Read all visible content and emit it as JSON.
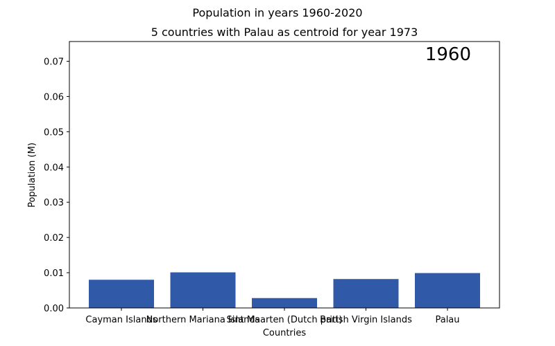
{
  "chart_data": {
    "type": "bar",
    "title": "Population in years 1960-2020",
    "subtitle": "5 countries with Palau as centroid for year 1973",
    "xlabel": "Countries",
    "ylabel": "Population (M)",
    "annotation": "1960",
    "categories": [
      "Cayman Islands",
      "Northern Mariana Islands",
      "Sint Maarten (Dutch part)",
      "British Virgin Islands",
      "Palau"
    ],
    "values": [
      0.008,
      0.0101,
      0.0028,
      0.0082,
      0.0099
    ],
    "ylim": [
      0,
      0.0756
    ],
    "yticks": [
      "0.00",
      "0.01",
      "0.02",
      "0.03",
      "0.04",
      "0.05",
      "0.06",
      "0.07"
    ],
    "bar_color": "#3059a8",
    "grid": false,
    "legend": "none"
  }
}
